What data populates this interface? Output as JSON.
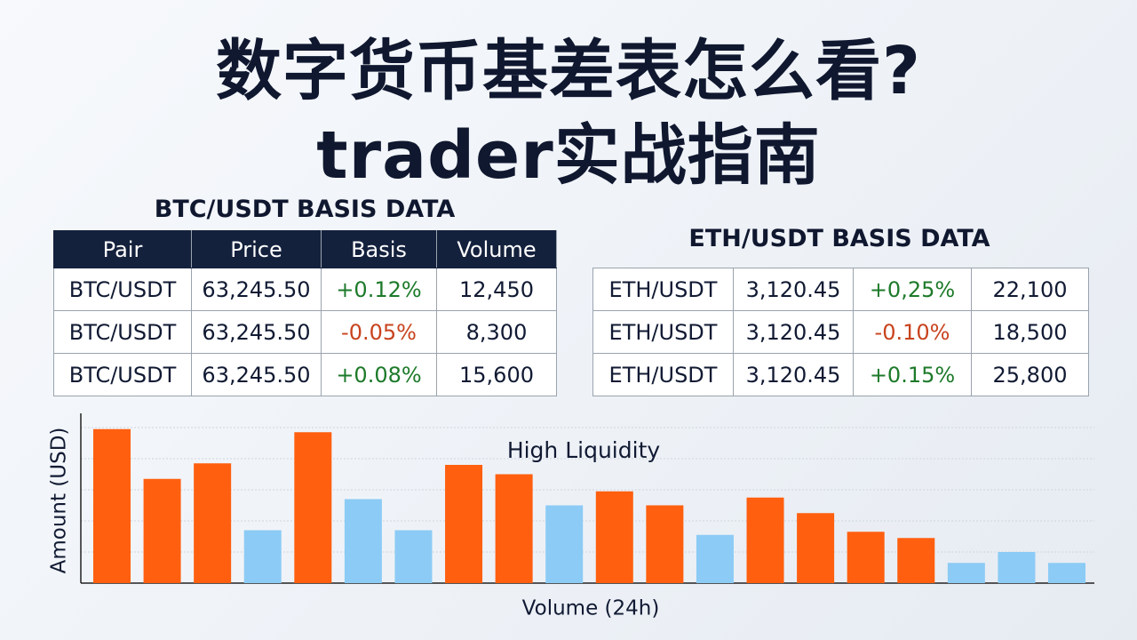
{
  "title": {
    "line1": "数字货币基差表怎么看?",
    "line2": "trader实战指南"
  },
  "tables": [
    {
      "heading": "BTC/USDT BASIS DATA",
      "header": [
        "Pair",
        "Price",
        "Basis",
        "Volume"
      ],
      "rows": [
        [
          "BTC/USDT",
          "63,245.50",
          "+0.12%",
          "12,450"
        ],
        [
          "BTC/USDT",
          "63,245.50",
          "-0.05%",
          "8,300"
        ],
        [
          "BTC/USDT",
          "63,245.50",
          "+0.08%",
          "15,600"
        ]
      ]
    },
    {
      "heading": "ETH/USDT BASIS DATA",
      "rows": [
        [
          "ETH/USDT",
          "3,120.45",
          "+0,25%",
          "22,100"
        ],
        [
          "ETH/USDT",
          "3,120.45",
          "-0.10%",
          "18,500"
        ],
        [
          "ETH/USDT",
          "3,120.45",
          "+0.15%",
          "25,800"
        ]
      ]
    }
  ],
  "chart_data": {
    "type": "bar",
    "x_label": "Volume (24h)",
    "y_label": "Amount (USD)",
    "annotation": "High Liquidity",
    "categories": [
      null,
      null,
      null,
      null,
      null,
      null,
      null,
      null,
      null,
      null,
      null,
      null,
      null,
      null,
      null,
      null,
      null,
      null,
      null,
      null
    ],
    "values": [
      99,
      67,
      77,
      34,
      97,
      54,
      34,
      76,
      70,
      50,
      59,
      50,
      31,
      55,
      45,
      33,
      29,
      13,
      20,
      13
    ],
    "colors": [
      "#ff5f0f",
      "#ff5f0f",
      "#ff5f0f",
      "#8ccbf5",
      "#ff5f0f",
      "#8ccbf5",
      "#8ccbf5",
      "#ff5f0f",
      "#ff5f0f",
      "#8ccbf5",
      "#ff5f0f",
      "#ff5f0f",
      "#8ccbf5",
      "#ff5f0f",
      "#ff5f0f",
      "#ff5f0f",
      "#ff5f0f",
      "#8ccbf5",
      "#8ccbf5",
      "#8ccbf5"
    ],
    "ylim": [
      0,
      100
    ],
    "yticks": [
      20,
      40,
      60,
      80,
      100
    ],
    "grid": true
  }
}
